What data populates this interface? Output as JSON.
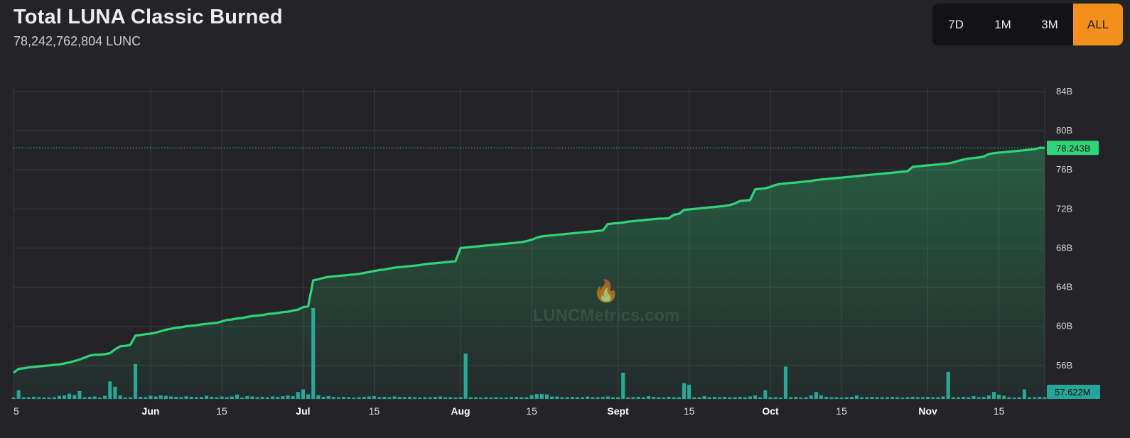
{
  "header": {
    "title": "Total LUNA Classic Burned",
    "subtitle": "78,242,762,804 LUNC"
  },
  "range_buttons": [
    {
      "label": "7D",
      "active": false
    },
    {
      "label": "1M",
      "active": false
    },
    {
      "label": "3M",
      "active": false
    },
    {
      "label": "ALL",
      "active": true
    }
  ],
  "watermark": "LUNCMetrics.com",
  "colors": {
    "line": "#2fd47a",
    "bars": "#26a69a",
    "active_button": "#f2901b",
    "price_badge": "#2fd47a",
    "volume_badge": "#26a69a"
  },
  "chart_data": {
    "type": "line",
    "y_axis_ticks": [
      "84B",
      "80B",
      "76B",
      "72B",
      "68B",
      "64B",
      "60B",
      "56B"
    ],
    "ylim": [
      52.5,
      84.5
    ],
    "x_tick_labels": [
      {
        "label": "5",
        "day": 0,
        "bold": false
      },
      {
        "label": "Jun",
        "day": 27,
        "bold": true
      },
      {
        "label": "15",
        "day": 41,
        "bold": false
      },
      {
        "label": "Jul",
        "day": 57,
        "bold": true
      },
      {
        "label": "15",
        "day": 71,
        "bold": false
      },
      {
        "label": "Aug",
        "day": 88,
        "bold": true
      },
      {
        "label": "15",
        "day": 102,
        "bold": false
      },
      {
        "label": "Sept",
        "day": 119,
        "bold": true
      },
      {
        "label": "15",
        "day": 133,
        "bold": false
      },
      {
        "label": "Oct",
        "day": 149,
        "bold": true
      },
      {
        "label": "15",
        "day": 163,
        "bold": false
      },
      {
        "label": "Nov",
        "day": 180,
        "bold": true
      },
      {
        "label": "15",
        "day": 194,
        "bold": false
      }
    ],
    "last_value_label": "78.243B",
    "last_volume_label": "57.622M",
    "series": [
      {
        "values_b": [
          55.25,
          55.65,
          55.7,
          55.8,
          55.85,
          55.9,
          55.95,
          56.0,
          56.05,
          56.1,
          56.2,
          56.3,
          56.45,
          56.6,
          56.8,
          57.0,
          57.1,
          57.1,
          57.15,
          57.25,
          57.65,
          57.95,
          58.0,
          58.1,
          59.05,
          59.1,
          59.2,
          59.25,
          59.35,
          59.5,
          59.65,
          59.75,
          59.85,
          59.9,
          60.0,
          60.05,
          60.1,
          60.2,
          60.25,
          60.3,
          60.35,
          60.5,
          60.65,
          60.7,
          60.8,
          60.85,
          60.95,
          61.05,
          61.1,
          61.15,
          61.25,
          61.3,
          61.35,
          61.45,
          61.5,
          61.6,
          61.7,
          61.95,
          62.05,
          64.7,
          64.8,
          64.95,
          65.05,
          65.1,
          65.15,
          65.2,
          65.25,
          65.3,
          65.35,
          65.45,
          65.55,
          65.65,
          65.75,
          65.8,
          65.9,
          66.0,
          66.05,
          66.1,
          66.15,
          66.2,
          66.25,
          66.35,
          66.4,
          66.45,
          66.5,
          66.55,
          66.6,
          66.65,
          68.0,
          68.05,
          68.1,
          68.15,
          68.2,
          68.25,
          68.3,
          68.35,
          68.4,
          68.45,
          68.5,
          68.55,
          68.6,
          68.7,
          68.85,
          69.05,
          69.2,
          69.25,
          69.3,
          69.35,
          69.4,
          69.45,
          69.5,
          69.55,
          69.6,
          69.65,
          69.7,
          69.75,
          69.8,
          70.45,
          70.5,
          70.55,
          70.6,
          70.7,
          70.75,
          70.8,
          70.85,
          70.9,
          70.95,
          71.0,
          71.0,
          71.05,
          71.4,
          71.5,
          71.9,
          71.95,
          72.0,
          72.05,
          72.1,
          72.15,
          72.2,
          72.25,
          72.3,
          72.4,
          72.55,
          72.8,
          72.85,
          72.9,
          74.0,
          74.05,
          74.1,
          74.25,
          74.45,
          74.55,
          74.6,
          74.65,
          74.7,
          74.75,
          74.8,
          74.85,
          74.95,
          75.0,
          75.05,
          75.1,
          75.15,
          75.2,
          75.25,
          75.3,
          75.35,
          75.4,
          75.45,
          75.5,
          75.55,
          75.6,
          75.65,
          75.7,
          75.75,
          75.8,
          75.85,
          76.3,
          76.35,
          76.4,
          76.45,
          76.5,
          76.55,
          76.6,
          76.65,
          76.75,
          76.9,
          77.05,
          77.15,
          77.2,
          77.25,
          77.35,
          77.6,
          77.7,
          77.75,
          77.8,
          77.85,
          77.9,
          77.95,
          78.0,
          78.05,
          78.1,
          78.25,
          78.24
        ]
      },
      {
        "volume_m": [
          8,
          50,
          10,
          10,
          12,
          10,
          8,
          9,
          10,
          18,
          20,
          30,
          22,
          45,
          10,
          12,
          14,
          8,
          18,
          100,
          70,
          20,
          8,
          10,
          200,
          12,
          10,
          18,
          14,
          20,
          18,
          14,
          12,
          10,
          15,
          12,
          10,
          12,
          18,
          12,
          10,
          14,
          10,
          14,
          25,
          8,
          16,
          14,
          10,
          12,
          10,
          14,
          12,
          16,
          20,
          16,
          40,
          55,
          26,
          520,
          22,
          12,
          16,
          12,
          10,
          12,
          10,
          8,
          10,
          12,
          14,
          16,
          10,
          12,
          10,
          14,
          12,
          10,
          12,
          10,
          8,
          10,
          10,
          12,
          14,
          10,
          10,
          8,
          10,
          260,
          10,
          10,
          8,
          10,
          8,
          10,
          8,
          8,
          10,
          12,
          10,
          10,
          22,
          28,
          28,
          26,
          14,
          14,
          10,
          10,
          12,
          10,
          10,
          14,
          10,
          10,
          12,
          14,
          10,
          10,
          150,
          10,
          10,
          12,
          10,
          16,
          12,
          10,
          8,
          12,
          10,
          10,
          90,
          82,
          10,
          10,
          16,
          10,
          12,
          10,
          12,
          10,
          10,
          12,
          10,
          14,
          20,
          10,
          50,
          10,
          10,
          8,
          185,
          10,
          12,
          8,
          10,
          20,
          40,
          20,
          12,
          10,
          10,
          8,
          10,
          12,
          20,
          10,
          10,
          12,
          10,
          10,
          10,
          12,
          10,
          8,
          10,
          12,
          10,
          10,
          12,
          10,
          10,
          14,
          155,
          10,
          10,
          12,
          10,
          16,
          10,
          12,
          20,
          40,
          24,
          18,
          10,
          8,
          10,
          55,
          10,
          10,
          12,
          10,
          10,
          8,
          10,
          8,
          10,
          70,
          58
        ]
      }
    ]
  }
}
